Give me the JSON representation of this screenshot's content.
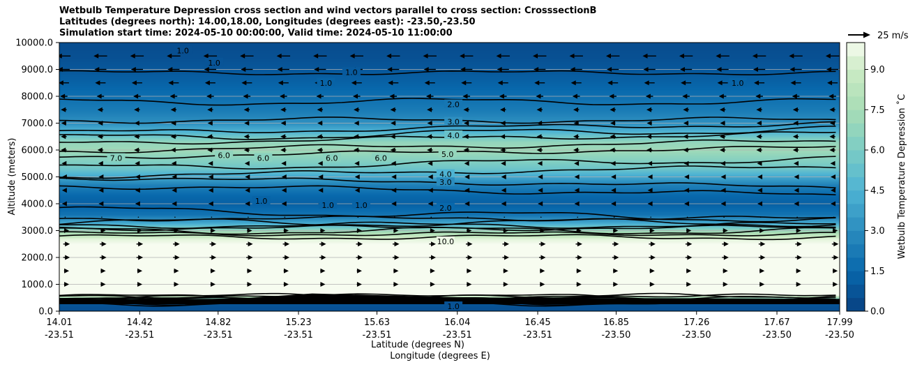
{
  "chart_data": {
    "type": "contour",
    "title_lines": [
      "Wetbulb Temperature Depression cross section and wind vectors parallel to cross section: CrosssectionB",
      "Latitudes (degrees north): 14.00,18.00, Longitudes (degrees east): -23.50,-23.50",
      "Simulation start time: 2024-05-10 00:00:00, Valid time: 2024-05-10 11:00:00"
    ],
    "xlabel_lines": [
      "Latitude (degrees N)",
      "Longitude (degrees E)"
    ],
    "ylabel": "Altitude (meters)",
    "colorbar_label": "Wetbulb Temperature Depression ˚C",
    "vector_key_label": "25 m/s",
    "x_ticks": [
      {
        "lat": "14.01",
        "lon": "-23.51",
        "value": 14.01
      },
      {
        "lat": "14.42",
        "lon": "-23.51",
        "value": 14.42
      },
      {
        "lat": "14.82",
        "lon": "-23.51",
        "value": 14.82
      },
      {
        "lat": "15.23",
        "lon": "-23.51",
        "value": 15.23
      },
      {
        "lat": "15.63",
        "lon": "-23.51",
        "value": 15.63
      },
      {
        "lat": "16.04",
        "lon": "-23.51",
        "value": 16.04
      },
      {
        "lat": "16.45",
        "lon": "-23.51",
        "value": 16.45
      },
      {
        "lat": "16.85",
        "lon": "-23.50",
        "value": 16.85
      },
      {
        "lat": "17.26",
        "lon": "-23.50",
        "value": 17.26
      },
      {
        "lat": "17.67",
        "lon": "-23.50",
        "value": 17.67
      },
      {
        "lat": "17.99",
        "lon": "-23.50",
        "value": 17.99
      }
    ],
    "y_ticks": [
      {
        "label": "0.0",
        "value": 0
      },
      {
        "label": "1000.0",
        "value": 1000
      },
      {
        "label": "2000.0",
        "value": 2000
      },
      {
        "label": "3000.0",
        "value": 3000
      },
      {
        "label": "4000.0",
        "value": 4000
      },
      {
        "label": "5000.0",
        "value": 5000
      },
      {
        "label": "6000.0",
        "value": 6000
      },
      {
        "label": "7000.0",
        "value": 7000
      },
      {
        "label": "8000.0",
        "value": 8000
      },
      {
        "label": "9000.0",
        "value": 9000
      },
      {
        "label": "10000.0",
        "value": 10000
      }
    ],
    "xlim": [
      14.01,
      17.99
    ],
    "ylim": [
      0,
      10000
    ],
    "grid": "horizontal",
    "colorbar_ticks": [
      {
        "label": "0.0",
        "value": 0
      },
      {
        "label": "1.5",
        "value": 1.5
      },
      {
        "label": "3.0",
        "value": 3.0
      },
      {
        "label": "4.5",
        "value": 4.5
      },
      {
        "label": "6.0",
        "value": 6.0
      },
      {
        "label": "7.5",
        "value": 7.5
      },
      {
        "label": "9.0",
        "value": 9.0
      }
    ],
    "colorbar_range": [
      0,
      10
    ],
    "profile_altitudes": [
      0,
      300,
      600,
      1000,
      1500,
      2000,
      2500,
      2700,
      3000,
      3300,
      3600,
      4000,
      4300,
      4700,
      5000,
      5300,
      5700,
      6000,
      6300,
      6700,
      7000,
      7500,
      8000,
      8500,
      9000,
      9500,
      10000
    ],
    "profile_depression": [
      0.5,
      0.8,
      10,
      10,
      10,
      10,
      10,
      9.5,
      7,
      4,
      2,
      1.2,
      1.5,
      2.5,
      4,
      5.5,
      6.5,
      7.2,
      6.8,
      4.5,
      3.2,
      2.3,
      1.8,
      1.3,
      0.9,
      0.6,
      0.5
    ],
    "contour_labels": [
      {
        "text": "2.0",
        "x": 16.02,
        "y": 7700
      },
      {
        "text": "3.0",
        "x": 16.02,
        "y": 7050
      },
      {
        "text": "4.0",
        "x": 16.02,
        "y": 6550
      },
      {
        "text": "5.0",
        "x": 15.99,
        "y": 5850
      },
      {
        "text": "4.0",
        "x": 15.98,
        "y": 5100
      },
      {
        "text": "3.0",
        "x": 15.98,
        "y": 4800
      },
      {
        "text": "2.0",
        "x": 15.98,
        "y": 3850
      },
      {
        "text": "10.0",
        "x": 15.98,
        "y": 2600
      },
      {
        "text": "1.0",
        "x": 16.02,
        "y": 180
      },
      {
        "text": "1.0",
        "x": 14.64,
        "y": 9700
      },
      {
        "text": "1.0",
        "x": 14.8,
        "y": 9250
      },
      {
        "text": "1.0",
        "x": 15.37,
        "y": 8500
      },
      {
        "text": "1.0",
        "x": 15.5,
        "y": 8900
      },
      {
        "text": "1.0",
        "x": 17.47,
        "y": 8500
      },
      {
        "text": "7.0",
        "x": 14.3,
        "y": 5700
      },
      {
        "text": "6.0",
        "x": 14.85,
        "y": 5800
      },
      {
        "text": "6.0",
        "x": 15.05,
        "y": 5700
      },
      {
        "text": "6.0",
        "x": 15.4,
        "y": 5700
      },
      {
        "text": "6.0",
        "x": 15.65,
        "y": 5700
      },
      {
        "text": "1.0",
        "x": 15.04,
        "y": 4100
      },
      {
        "text": "1.0",
        "x": 15.38,
        "y": 3950
      },
      {
        "text": "1.0",
        "x": 15.55,
        "y": 3950
      }
    ],
    "wind_levels_m": [
      9500,
      9000,
      8500,
      8000,
      7500,
      7000,
      6500,
      6000,
      5500,
      5000,
      4500,
      4000,
      3500,
      3000,
      2500,
      2000,
      1500,
      1000
    ],
    "wind_u_ms": [
      -14,
      -12,
      -10,
      -6,
      -4,
      -3,
      -4,
      -4,
      -2,
      -1,
      -1,
      -1,
      0,
      3,
      5,
      5,
      3,
      3
    ]
  }
}
